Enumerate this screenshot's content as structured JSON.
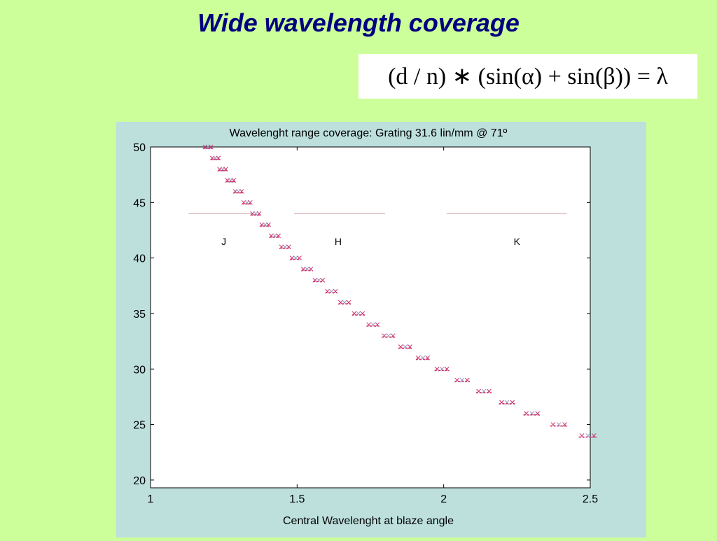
{
  "slide": {
    "title": "Wide wavelength coverage",
    "formula": "(d / n) ∗ (sin(α) + sin(β)) = λ"
  },
  "chart_data": {
    "type": "scatter",
    "title": "Wavelenght range coverage: Grating  31.6 lin/mm @ 71º",
    "xlabel": "Central Wavelenght at blaze angle",
    "ylabel": "",
    "xlim": [
      1,
      2.5
    ],
    "ylim": [
      19.3,
      50
    ],
    "xticks": [
      "1",
      "1.5",
      "2",
      "2.5"
    ],
    "yticks": [
      "20",
      "25",
      "30",
      "35",
      "40",
      "45",
      "50"
    ],
    "grid": false,
    "colors": {
      "marker": "#cc3366",
      "marker_light": "#9999cc",
      "band_line": "#cc9999",
      "background": "#ccff99",
      "panel": "#bde0dd"
    },
    "bands": [
      {
        "name": "J",
        "x_start": 1.13,
        "x_end": 1.35,
        "label_x": 1.25,
        "y": 44,
        "label_y": 41.5
      },
      {
        "name": "H",
        "x_start": 1.49,
        "x_end": 1.8,
        "label_x": 1.64,
        "y": 44,
        "label_y": 41.5
      },
      {
        "name": "K",
        "x_start": 2.01,
        "x_end": 2.42,
        "label_x": 2.25,
        "y": 44,
        "label_y": 41.5
      }
    ],
    "series": [
      {
        "orders": [
          50,
          49,
          48,
          47,
          46,
          45,
          44,
          43,
          42,
          41,
          40,
          39,
          38,
          37,
          36,
          35,
          34,
          33,
          32,
          31,
          30,
          29,
          28,
          27,
          26,
          25,
          24
        ],
        "center_wavelength": [
          1.196,
          1.221,
          1.246,
          1.273,
          1.3,
          1.329,
          1.359,
          1.391,
          1.424,
          1.459,
          1.495,
          1.534,
          1.574,
          1.617,
          1.662,
          1.709,
          1.759,
          1.812,
          1.869,
          1.929,
          1.994,
          2.063,
          2.137,
          2.216,
          2.301,
          2.393,
          2.492
        ],
        "coverage_width": [
          0.03,
          0.031,
          0.031,
          0.032,
          0.033,
          0.033,
          0.034,
          0.035,
          0.036,
          0.037,
          0.038,
          0.038,
          0.039,
          0.041,
          0.042,
          0.043,
          0.044,
          0.045,
          0.047,
          0.048,
          0.05,
          0.052,
          0.053,
          0.055,
          0.058,
          0.06,
          0.062
        ]
      }
    ]
  }
}
